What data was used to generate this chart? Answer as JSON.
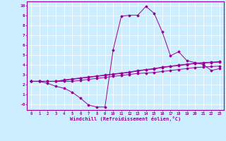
{
  "xlabel": "Windchill (Refroidissement éolien,°C)",
  "bg_color": "#cceeff",
  "line_color": "#990099",
  "xlim": [
    -0.5,
    23.5
  ],
  "ylim": [
    -0.6,
    10.4
  ],
  "xticks": [
    0,
    1,
    2,
    3,
    4,
    5,
    6,
    7,
    8,
    9,
    10,
    11,
    12,
    13,
    14,
    15,
    16,
    17,
    18,
    19,
    20,
    21,
    22,
    23
  ],
  "yticks": [
    0,
    1,
    2,
    3,
    4,
    5,
    6,
    7,
    8,
    9,
    10
  ],
  "ytick_labels": [
    "-0",
    "1",
    "2",
    "3",
    "4",
    "5",
    "6",
    "7",
    "8",
    "9",
    "10"
  ],
  "series": [
    [
      2.3,
      2.3,
      2.1,
      1.8,
      1.6,
      1.2,
      0.6,
      -0.1,
      -0.3,
      -0.3,
      5.5,
      8.9,
      9.0,
      9.0,
      9.9,
      9.2,
      7.3,
      4.9,
      5.3,
      4.4,
      4.2,
      4.0,
      3.4,
      3.6
    ],
    [
      2.3,
      2.3,
      2.3,
      2.3,
      2.3,
      2.3,
      2.4,
      2.5,
      2.6,
      2.7,
      2.8,
      2.9,
      3.0,
      3.1,
      3.15,
      3.2,
      3.3,
      3.4,
      3.5,
      3.6,
      3.7,
      3.75,
      3.8,
      3.85
    ],
    [
      2.3,
      2.3,
      2.3,
      2.3,
      2.4,
      2.5,
      2.6,
      2.7,
      2.8,
      2.9,
      3.0,
      3.1,
      3.2,
      3.35,
      3.45,
      3.55,
      3.7,
      3.8,
      3.9,
      4.0,
      4.1,
      4.15,
      4.2,
      4.25
    ],
    [
      2.3,
      2.3,
      2.3,
      2.3,
      2.45,
      2.55,
      2.65,
      2.75,
      2.85,
      2.95,
      3.05,
      3.15,
      3.25,
      3.4,
      3.5,
      3.6,
      3.75,
      3.85,
      3.95,
      4.05,
      4.15,
      4.2,
      4.25,
      4.3
    ]
  ]
}
